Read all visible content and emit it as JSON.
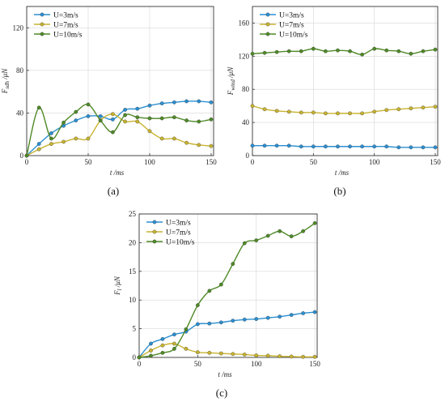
{
  "colors": {
    "u3": "#2b8fd1",
    "u7": "#c8b330",
    "u10": "#4f8a27"
  },
  "chart_data": [
    {
      "type": "line",
      "panel_label": "(a)",
      "ylabel_main": "F",
      "ylabel_sub": "sdh",
      "ylabel_unit": "/μN",
      "xlabel_main": "t",
      "xlabel_unit": "/ms",
      "xlim": [
        0,
        152
      ],
      "ylim": [
        0,
        140
      ],
      "xticks": [
        0,
        50,
        100,
        150
      ],
      "yticks": [
        0,
        40,
        80,
        120
      ],
      "grid": true,
      "legend_position": "top-left",
      "x": [
        0,
        10,
        20,
        30,
        40,
        50,
        60,
        70,
        80,
        90,
        100,
        110,
        120,
        130,
        140,
        150
      ],
      "series": [
        {
          "name": "U=3m/s",
          "color_key": "u3",
          "values": [
            0,
            11,
            21,
            28,
            33,
            37,
            37,
            34,
            43,
            44,
            47,
            49,
            50,
            51,
            51,
            50
          ]
        },
        {
          "name": "U=7m/s",
          "color_key": "u7",
          "values": [
            0,
            6,
            11,
            13,
            16,
            16,
            33,
            39,
            32,
            32,
            23,
            16,
            16,
            12,
            10,
            9
          ]
        },
        {
          "name": "U=10m/s",
          "color_key": "u10",
          "values": [
            0,
            45,
            16,
            31,
            41,
            48,
            33,
            22,
            38,
            36,
            35,
            35,
            36,
            33,
            32,
            34
          ]
        }
      ]
    },
    {
      "type": "line",
      "panel_label": "(b)",
      "ylabel_main": "F",
      "ylabel_sub": "wind",
      "ylabel_unit": "/μN",
      "xlabel_main": "t",
      "xlabel_unit": "/ms",
      "xlim": [
        0,
        152
      ],
      "ylim": [
        0,
        180
      ],
      "xticks": [
        0,
        50,
        100,
        150
      ],
      "yticks": [
        0,
        40,
        80,
        120,
        160
      ],
      "grid": true,
      "legend_position": "top-left",
      "x": [
        0,
        10,
        20,
        30,
        40,
        50,
        60,
        70,
        80,
        90,
        100,
        110,
        120,
        130,
        140,
        150
      ],
      "series": [
        {
          "name": "U=3m/s",
          "color_key": "u3",
          "values": [
            12,
            12,
            12,
            12,
            11,
            11,
            11,
            11,
            11,
            11,
            11,
            11,
            10,
            10,
            10,
            10
          ]
        },
        {
          "name": "U=7m/s",
          "color_key": "u7",
          "values": [
            60,
            56,
            54,
            53,
            52,
            52,
            51,
            51,
            51,
            51,
            53,
            55,
            56,
            57,
            58,
            59
          ]
        },
        {
          "name": "U=10m/s",
          "color_key": "u10",
          "values": [
            123,
            124,
            125,
            126,
            126,
            129,
            126,
            127,
            126,
            122,
            129,
            127,
            126,
            123,
            126,
            128
          ]
        }
      ]
    },
    {
      "type": "line",
      "panel_label": "(c)",
      "ylabel_main": "F",
      "ylabel_sub": "l",
      "ylabel_unit": "/μN",
      "xlabel_main": "t",
      "xlabel_unit": "/ms",
      "xlim": [
        0,
        152
      ],
      "ylim": [
        0,
        25
      ],
      "xticks": [
        0,
        50,
        100,
        150
      ],
      "yticks": [
        0,
        5,
        10,
        15,
        20,
        25
      ],
      "grid": true,
      "legend_position": "top-left",
      "x": [
        0,
        10,
        20,
        30,
        40,
        50,
        60,
        70,
        80,
        90,
        100,
        110,
        120,
        130,
        140,
        150
      ],
      "series": [
        {
          "name": "U=3m/s",
          "color_key": "u3",
          "values": [
            0,
            2.4,
            3.2,
            4.0,
            4.5,
            5.8,
            5.9,
            6.1,
            6.4,
            6.6,
            6.7,
            6.9,
            7.1,
            7.4,
            7.7,
            7.9
          ]
        },
        {
          "name": "U=7m/s",
          "color_key": "u7",
          "values": [
            0,
            1.2,
            2.1,
            2.4,
            1.5,
            0.9,
            0.8,
            0.7,
            0.6,
            0.5,
            0.35,
            0.3,
            0.2,
            0.15,
            0.1,
            0.1
          ]
        },
        {
          "name": "U=10m/s",
          "color_key": "u10",
          "values": [
            0,
            0.3,
            0.8,
            1.5,
            4.9,
            9.1,
            11.6,
            12.7,
            16.3,
            19.9,
            20.4,
            21.2,
            22.0,
            21.1,
            22.0,
            23.4
          ]
        }
      ]
    }
  ]
}
